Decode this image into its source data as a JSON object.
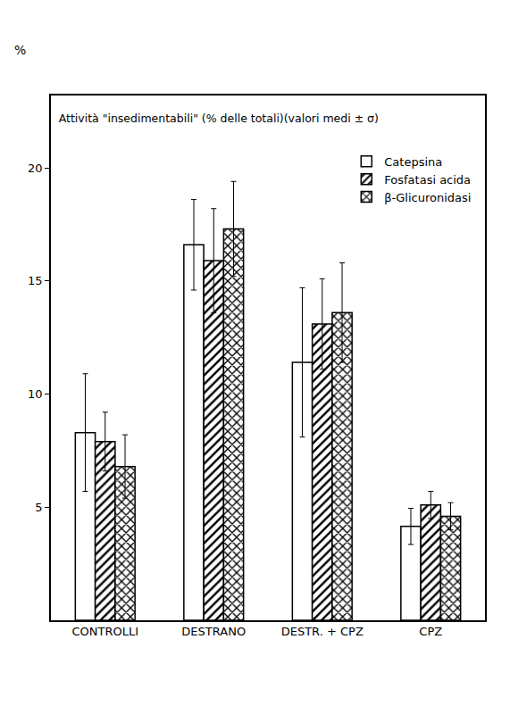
{
  "chart_data": {
    "type": "bar",
    "title": "Attività \"insedimentabili\" (% delle totali)(valori medi ± σ)",
    "y_label": "%",
    "categories": [
      "CONTROLLI",
      "DESTRANO",
      "DESTR. + CPZ",
      "CPZ"
    ],
    "series": [
      {
        "name": "Catepsina",
        "color": "#ffffff",
        "marker": "plain",
        "values": [
          8.3,
          16.6,
          11.4,
          4.15
        ],
        "errors": [
          2.6,
          2.0,
          3.3,
          0.8
        ]
      },
      {
        "name": "Fosfatasi acida",
        "color": "#ffffff",
        "marker": "hatched",
        "values": [
          7.9,
          15.9,
          13.1,
          5.1
        ],
        "errors": [
          1.3,
          2.3,
          2.0,
          0.6
        ]
      },
      {
        "name": "β-Glicuronidasi",
        "color": "#ffffff",
        "marker": "crosshatched",
        "values": [
          6.8,
          17.3,
          13.6,
          4.6
        ],
        "errors": [
          1.4,
          2.1,
          2.2,
          0.6
        ]
      }
    ],
    "ylim": [
      0,
      23.2
    ],
    "yticks": [
      5,
      10,
      15,
      20
    ],
    "grid": false,
    "legend": "upper right"
  }
}
